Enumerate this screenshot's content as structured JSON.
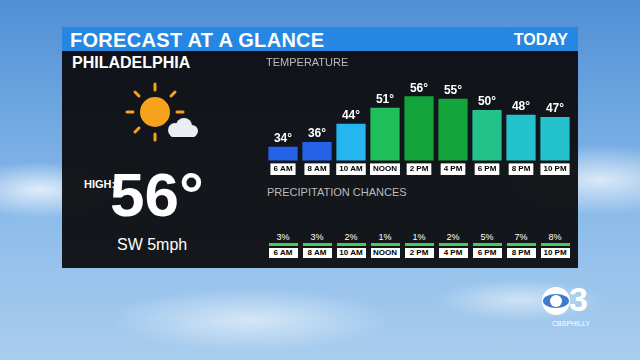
{
  "header": {
    "title": "FORECAST AT A GLANCE",
    "right": "TODAY"
  },
  "city": "PHILADELPHIA",
  "high": {
    "label": "HIGH:",
    "text": "56°"
  },
  "wind": "SW 5mph",
  "chart_data": {
    "type": "bar",
    "title": "TEMPERATURE",
    "categories": [
      "6 AM",
      "8 AM",
      "10 AM",
      "NOON",
      "2 PM",
      "4 PM",
      "6 PM",
      "8 PM",
      "10 PM"
    ],
    "values": [
      34,
      36,
      44,
      51,
      56,
      55,
      50,
      48,
      47
    ],
    "value_labels": [
      "34°",
      "36°",
      "44°",
      "51°",
      "56°",
      "55°",
      "50°",
      "48°",
      "47°"
    ],
    "colors": [
      "#2463e8",
      "#2463e8",
      "#25b6ee",
      "#1fc05a",
      "#13a43b",
      "#13a43b",
      "#22c28a",
      "#23c2cc",
      "#23c2cc"
    ],
    "ylim": [
      28,
      60
    ],
    "data_labels": true,
    "grid": false,
    "tick_labels": "x"
  },
  "precipitation": {
    "title": "PRECIPITATION CHANCES",
    "categories": [
      "6 AM",
      "8 AM",
      "10 AM",
      "NOON",
      "2 PM",
      "4 PM",
      "6 PM",
      "8 PM",
      "10 PM"
    ],
    "chances": [
      "3%",
      "3%",
      "2%",
      "1%",
      "1%",
      "2%",
      "5%",
      "7%",
      "8%"
    ]
  },
  "logo": {
    "text": "3",
    "social": "CBSPHILLY"
  }
}
